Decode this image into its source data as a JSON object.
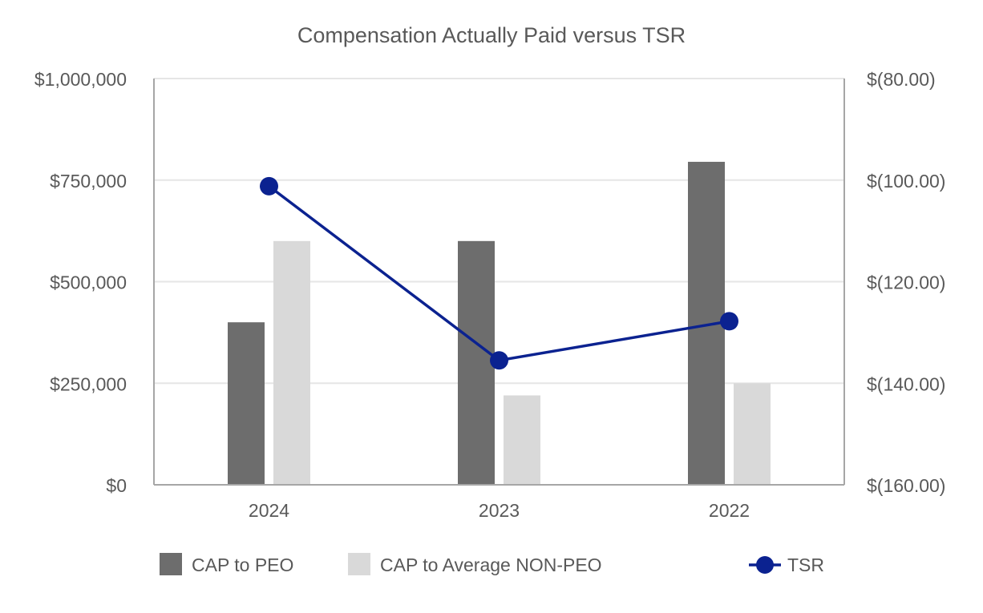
{
  "chart_data": {
    "type": "bar",
    "title": "Compensation Actually Paid versus TSR",
    "categories": [
      "2024",
      "2023",
      "2022"
    ],
    "y_left": {
      "ylim": [
        0,
        1000000
      ],
      "ticks": [
        0,
        250000,
        500000,
        750000,
        1000000
      ],
      "tick_labels": [
        "$0",
        "$250,000",
        "$500,000",
        "$750,000",
        "$1,000,000"
      ]
    },
    "y_right": {
      "ylim": [
        -160,
        -80
      ],
      "ticks": [
        -160,
        -140,
        -120,
        -100,
        -80
      ],
      "tick_labels": [
        "$(160.00)",
        "$(140.00)",
        "$(120.00)",
        "$(100.00)",
        "$(80.00)"
      ]
    },
    "series": [
      {
        "name": "CAP to PEO",
        "type": "bar",
        "axis": "left",
        "color": "#6d6d6d",
        "values": [
          400000,
          600000,
          795000
        ]
      },
      {
        "name": "CAP to Average NON-PEO",
        "type": "bar",
        "axis": "left",
        "color": "#d9d9d9",
        "values": [
          600000,
          220000,
          250000
        ]
      },
      {
        "name": "TSR",
        "type": "line",
        "axis": "right",
        "color": "#0b2290",
        "values": [
          -101.2,
          -135.5,
          -127.8
        ]
      }
    ],
    "grid": true,
    "legend_position": "bottom"
  }
}
